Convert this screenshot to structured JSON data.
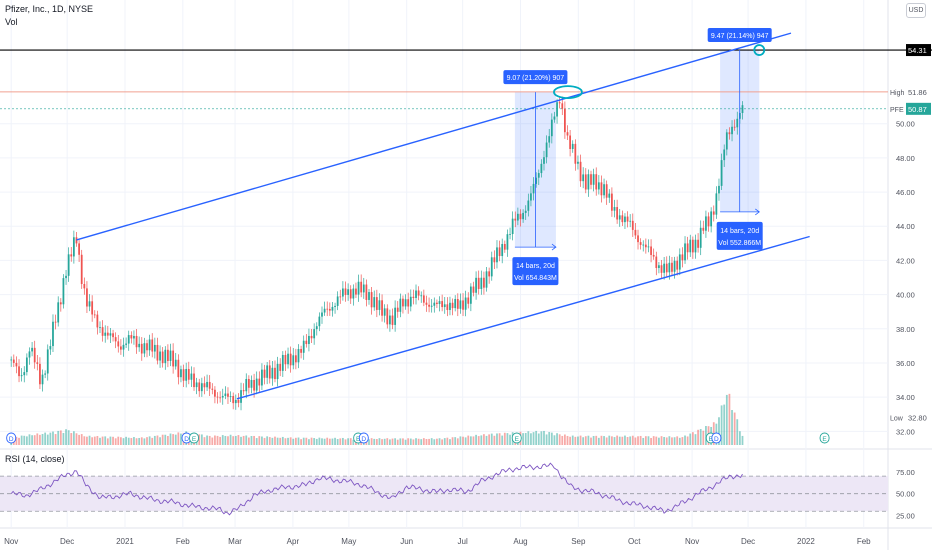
{
  "header": {
    "symbol_line": "Pfizer, Inc., 1D, NYSE",
    "volume_label": "Vol",
    "currency_button": "USD",
    "rsi_label": "RSI (14, close)"
  },
  "colors": {
    "up": "#26a69a",
    "down": "#ef5350",
    "channel": "#2962ff",
    "resistance": "#000000",
    "high_line": "#f0a090",
    "last_price_line": "#26a69a",
    "rsi_line": "#7e57c2",
    "rsi_band": "#ede7f6",
    "measure_fill": "#2962ff",
    "label_bg": "#2962ff"
  },
  "chart_data": {
    "type": "candlestick",
    "price_axis": {
      "range": [
        31.2,
        55.6
      ],
      "ticks": [
        32.0,
        34.0,
        36.0,
        38.0,
        40.0,
        42.0,
        44.0,
        46.0,
        48.0,
        50.0
      ],
      "tick_labels": [
        "32.00",
        "34.00",
        "36.00",
        "38.00",
        "40.00",
        "42.00",
        "44.00",
        "46.00",
        "48.00",
        "50.00"
      ]
    },
    "time_axis": {
      "labels": [
        "Nov",
        "Dec",
        "2021",
        "Feb",
        "Mar",
        "Apr",
        "May",
        "Jun",
        "Jul",
        "Aug",
        "Sep",
        "Oct",
        "Nov",
        "Dec",
        "2022",
        "Feb"
      ],
      "label_days": [
        0,
        30,
        61,
        92,
        120,
        151,
        181,
        212,
        242,
        273,
        304,
        334,
        365,
        395,
        426,
        457
      ],
      "range_days": [
        -6,
        470
      ]
    },
    "price_series": {
      "points": [
        [
          0,
          36.2
        ],
        [
          5,
          35.0
        ],
        [
          10,
          37.0
        ],
        [
          16,
          34.8
        ],
        [
          20,
          36.8
        ],
        [
          26,
          39.5
        ],
        [
          29,
          41.5
        ],
        [
          35,
          43.2
        ],
        [
          37,
          41.6
        ],
        [
          40,
          39.8
        ],
        [
          45,
          38.4
        ],
        [
          52,
          37.6
        ],
        [
          58,
          37.0
        ],
        [
          64,
          37.4
        ],
        [
          70,
          37.0
        ],
        [
          76,
          36.8
        ],
        [
          82,
          36.4
        ],
        [
          88,
          36.0
        ],
        [
          92,
          35.3
        ],
        [
          98,
          34.9
        ],
        [
          104,
          34.6
        ],
        [
          110,
          34.2
        ],
        [
          116,
          33.9
        ],
        [
          121,
          33.9
        ],
        [
          126,
          34.6
        ],
        [
          132,
          35.0
        ],
        [
          138,
          35.4
        ],
        [
          144,
          35.8
        ],
        [
          150,
          36.3
        ],
        [
          156,
          36.7
        ],
        [
          162,
          38.0
        ],
        [
          168,
          39.0
        ],
        [
          174,
          39.6
        ],
        [
          180,
          40.2
        ],
        [
          186,
          40.3
        ],
        [
          192,
          40.0
        ],
        [
          198,
          39.0
        ],
        [
          204,
          38.6
        ],
        [
          210,
          39.5
        ],
        [
          216,
          40.0
        ],
        [
          222,
          39.6
        ],
        [
          228,
          39.3
        ],
        [
          234,
          39.5
        ],
        [
          240,
          39.2
        ],
        [
          246,
          40.1
        ],
        [
          252,
          40.7
        ],
        [
          258,
          41.8
        ],
        [
          262,
          42.6
        ],
        [
          266,
          43.4
        ],
        [
          270,
          44.3
        ],
        [
          274,
          44.8
        ],
        [
          278,
          45.6
        ],
        [
          282,
          46.9
        ],
        [
          286,
          48.5
        ],
        [
          289,
          49.5
        ],
        [
          292,
          50.8
        ],
        [
          294,
          51.6
        ],
        [
          296,
          50.5
        ],
        [
          298,
          49.0
        ],
        [
          301,
          48.3
        ],
        [
          304,
          47.5
        ],
        [
          308,
          46.5
        ],
        [
          313,
          46.6
        ],
        [
          318,
          46.2
        ],
        [
          322,
          45.0
        ],
        [
          327,
          44.6
        ],
        [
          332,
          44.0
        ],
        [
          336,
          43.3
        ],
        [
          340,
          42.7
        ],
        [
          344,
          42.2
        ],
        [
          348,
          41.6
        ],
        [
          352,
          41.3
        ],
        [
          356,
          41.9
        ],
        [
          360,
          42.3
        ],
        [
          364,
          42.8
        ],
        [
          368,
          43.2
        ],
        [
          371,
          43.9
        ],
        [
          374,
          44.2
        ],
        [
          377,
          45.3
        ],
        [
          380,
          47.0
        ],
        [
          383,
          49.0
        ],
        [
          386,
          49.8
        ],
        [
          389,
          50.3
        ],
        [
          392,
          50.87
        ]
      ]
    },
    "volume_series": {
      "range_millions": [
        0,
        140
      ],
      "points": [
        [
          0,
          18
        ],
        [
          8,
          24
        ],
        [
          20,
          30
        ],
        [
          30,
          38
        ],
        [
          40,
          22
        ],
        [
          70,
          18
        ],
        [
          94,
          32
        ],
        [
          106,
          22
        ],
        [
          118,
          24
        ],
        [
          150,
          18
        ],
        [
          190,
          16
        ],
        [
          230,
          16
        ],
        [
          260,
          28
        ],
        [
          285,
          34
        ],
        [
          300,
          22
        ],
        [
          330,
          22
        ],
        [
          360,
          20
        ],
        [
          378,
          56
        ],
        [
          384,
          134
        ],
        [
          392,
          22
        ]
      ]
    },
    "earnings_markers": [
      {
        "day": 0,
        "letter": "D"
      },
      {
        "day": 94,
        "letter": "D"
      },
      {
        "day": 98,
        "letter": "E"
      },
      {
        "day": 186,
        "letter": "E"
      },
      {
        "day": 189,
        "letter": "D"
      },
      {
        "day": 271,
        "letter": "E"
      },
      {
        "day": 375,
        "letter": "E"
      },
      {
        "day": 378,
        "letter": "D"
      },
      {
        "day": 436,
        "letter": "E"
      }
    ],
    "channel_upper": [
      [
        35,
        43.2
      ],
      [
        418,
        55.3
      ]
    ],
    "channel_lower": [
      [
        121,
        33.9
      ],
      [
        428,
        43.4
      ]
    ],
    "horizontal_levels": {
      "resistance": 54.31,
      "resistance_label": "54.31",
      "high": 51.86,
      "high_label": "51.86",
      "high_tag": "High",
      "last": 50.87,
      "last_label": "50.87",
      "last_tag": "PFE",
      "low": 32.8,
      "low_label": "32.80",
      "low_tag": "Low"
    },
    "measurements": [
      {
        "start_day": 270,
        "end_day": 292,
        "from_price": 42.78,
        "to_price": 51.85,
        "top_label": "9.07 (21.20%) 907",
        "bottom_label_line1": "14 bars, 20d",
        "bottom_label_line2": "Vol 654.843M"
      },
      {
        "start_day": 380,
        "end_day": 401,
        "from_price": 44.84,
        "to_price": 54.31,
        "top_label": "9.47 (21.14%) 947",
        "bottom_label_line1": "14 bars, 20d",
        "bottom_label_line2": "Vol 552.866M"
      }
    ],
    "rsi": {
      "range": [
        20,
        85
      ],
      "ticks": [
        25.0,
        50.0,
        75.0
      ],
      "tick_labels": [
        "25.00",
        "50.00",
        "75.00"
      ],
      "band": [
        30,
        70
      ],
      "points": [
        [
          0,
          50
        ],
        [
          8,
          48
        ],
        [
          16,
          55
        ],
        [
          24,
          65
        ],
        [
          30,
          72
        ],
        [
          35,
          76
        ],
        [
          40,
          60
        ],
        [
          48,
          45
        ],
        [
          56,
          47
        ],
        [
          64,
          50
        ],
        [
          72,
          45
        ],
        [
          80,
          42
        ],
        [
          88,
          40
        ],
        [
          96,
          36
        ],
        [
          104,
          34
        ],
        [
          112,
          32
        ],
        [
          116,
          28
        ],
        [
          122,
          33
        ],
        [
          130,
          48
        ],
        [
          140,
          55
        ],
        [
          150,
          58
        ],
        [
          158,
          60
        ],
        [
          165,
          68
        ],
        [
          172,
          66
        ],
        [
          180,
          64
        ],
        [
          188,
          60
        ],
        [
          196,
          52
        ],
        [
          204,
          44
        ],
        [
          212,
          58
        ],
        [
          220,
          55
        ],
        [
          228,
          52
        ],
        [
          236,
          55
        ],
        [
          244,
          52
        ],
        [
          252,
          64
        ],
        [
          260,
          72
        ],
        [
          268,
          78
        ],
        [
          276,
          80
        ],
        [
          284,
          81
        ],
        [
          291,
          82
        ],
        [
          295,
          70
        ],
        [
          300,
          58
        ],
        [
          306,
          54
        ],
        [
          312,
          52
        ],
        [
          318,
          48
        ],
        [
          326,
          42
        ],
        [
          334,
          38
        ],
        [
          342,
          35
        ],
        [
          350,
          30
        ],
        [
          356,
          35
        ],
        [
          362,
          42
        ],
        [
          368,
          50
        ],
        [
          374,
          56
        ],
        [
          380,
          64
        ],
        [
          386,
          70
        ],
        [
          392,
          71
        ]
      ]
    }
  }
}
